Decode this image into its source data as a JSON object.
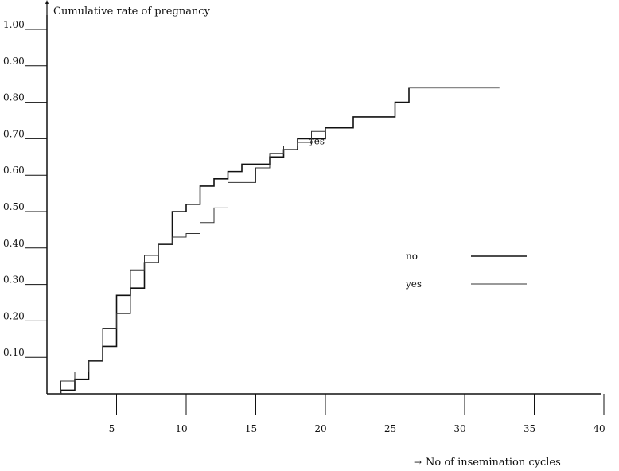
{
  "chart_data": {
    "type": "line",
    "step": true,
    "ylabel": "Cumulative rate of pregnancy",
    "xlabel": "No of insemination cycles",
    "xlim": [
      0,
      40
    ],
    "ylim": [
      0,
      1.0
    ],
    "x_ticks": [
      5,
      10,
      15,
      20,
      25,
      30,
      35,
      40
    ],
    "y_ticks": [
      0.1,
      0.2,
      0.3,
      0.4,
      0.5,
      0.6,
      0.7,
      0.8,
      0.9,
      1.0
    ],
    "y_tick_labels": [
      "0.10",
      "0.20",
      "0.30",
      "0.40",
      "0.50",
      "0.60",
      "0.70",
      "0.80",
      "0.90",
      "1.00"
    ],
    "x_tick_labels": [
      "5",
      "10",
      "15",
      "20",
      "25",
      "30",
      "35",
      "40"
    ],
    "grid": false,
    "legend_position": "middle-right",
    "legend": [
      {
        "label": "no",
        "series": 0
      },
      {
        "label": "yes",
        "series": 1
      }
    ],
    "annotations": [
      {
        "text": "yes",
        "x": 18.8,
        "y": 0.685
      }
    ],
    "series": [
      {
        "name": "no",
        "color": "#111111",
        "width": 1.6,
        "x": [
          1,
          2,
          3,
          4,
          5,
          6,
          7,
          8,
          9,
          10,
          11,
          12,
          13,
          14,
          15,
          16,
          17,
          18,
          19,
          20,
          21,
          22,
          23,
          24,
          25,
          26,
          27,
          28,
          29,
          30,
          31,
          32.5
        ],
        "y": [
          0.01,
          0.04,
          0.09,
          0.13,
          0.27,
          0.29,
          0.36,
          0.41,
          0.5,
          0.52,
          0.57,
          0.59,
          0.61,
          0.63,
          0.63,
          0.65,
          0.67,
          0.7,
          0.7,
          0.73,
          0.73,
          0.76,
          0.76,
          0.76,
          0.8,
          0.84,
          0.84,
          0.84,
          0.84,
          0.84,
          0.84,
          0.84
        ]
      },
      {
        "name": "yes",
        "color": "#333333",
        "width": 1.0,
        "x": [
          1,
          2,
          3,
          4,
          5,
          6,
          7,
          8,
          9,
          10,
          11,
          12,
          13,
          14,
          15,
          16,
          17,
          18,
          19,
          20
        ],
        "y": [
          0.035,
          0.06,
          0.09,
          0.18,
          0.22,
          0.34,
          0.38,
          0.41,
          0.43,
          0.44,
          0.47,
          0.51,
          0.58,
          0.58,
          0.62,
          0.66,
          0.68,
          0.69,
          0.72,
          0.73
        ]
      }
    ]
  }
}
